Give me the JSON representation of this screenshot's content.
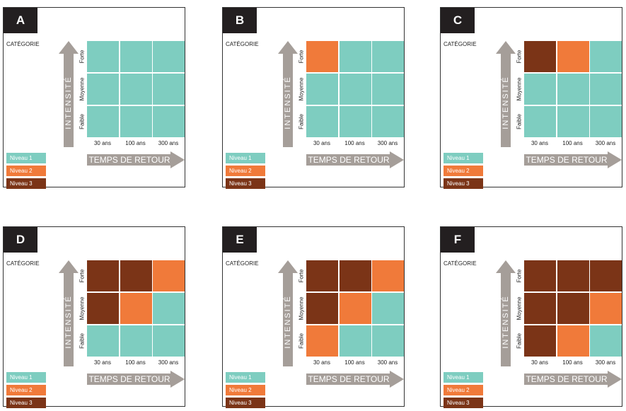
{
  "colors": {
    "niveau1": "#7ecdc0",
    "niveau2": "#f07a3a",
    "niveau3": "#7b3417",
    "arrow": "#a59e99"
  },
  "category_label": "CATÉGORIE",
  "y_axis_label": "INTENSITÉ",
  "x_axis_label": "TEMPS DE RETOUR",
  "row_labels": [
    "Forte",
    "Moyenne",
    "Faible"
  ],
  "col_labels": [
    "30 ans",
    "100 ans",
    "300 ans"
  ],
  "legend": [
    {
      "label": "Niveau 1",
      "level": 1
    },
    {
      "label": "Niveau 2",
      "level": 2
    },
    {
      "label": "Niveau 3",
      "level": 3
    }
  ],
  "panels": [
    {
      "letter": "A",
      "matrix": [
        [
          1,
          1,
          1
        ],
        [
          1,
          1,
          1
        ],
        [
          1,
          1,
          1
        ]
      ]
    },
    {
      "letter": "B",
      "matrix": [
        [
          2,
          1,
          1
        ],
        [
          1,
          1,
          1
        ],
        [
          1,
          1,
          1
        ]
      ]
    },
    {
      "letter": "C",
      "matrix": [
        [
          3,
          2,
          1
        ],
        [
          1,
          1,
          1
        ],
        [
          1,
          1,
          1
        ]
      ]
    },
    {
      "letter": "D",
      "matrix": [
        [
          3,
          3,
          2
        ],
        [
          3,
          2,
          1
        ],
        [
          1,
          1,
          1
        ]
      ]
    },
    {
      "letter": "E",
      "matrix": [
        [
          3,
          3,
          2
        ],
        [
          3,
          2,
          1
        ],
        [
          2,
          1,
          1
        ]
      ]
    },
    {
      "letter": "F",
      "matrix": [
        [
          3,
          3,
          3
        ],
        [
          3,
          3,
          2
        ],
        [
          3,
          2,
          1
        ]
      ]
    }
  ]
}
